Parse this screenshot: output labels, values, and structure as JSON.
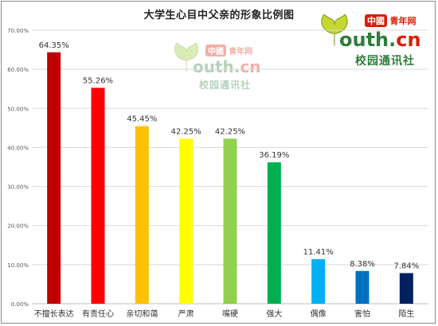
{
  "chart_data": {
    "type": "bar",
    "title": "大学生心目中父亲的形象比例图",
    "categories": [
      "不擅长表达",
      "有责任心",
      "亲切和蔼",
      "严肃",
      "嘴硬",
      "强大",
      "偶像",
      "害怕",
      "陌生"
    ],
    "values": [
      64.35,
      55.26,
      45.45,
      42.25,
      42.25,
      36.19,
      11.41,
      8.38,
      7.84
    ],
    "value_labels": [
      "64.35%",
      "55.26%",
      "45.45%",
      "42.25%",
      "42.25%",
      "36.19%",
      "11.41%",
      "8.38%",
      "7.84%"
    ],
    "colors": [
      "#c00000",
      "#ff0000",
      "#ffc000",
      "#ffff00",
      "#92d050",
      "#00b050",
      "#00b0f0",
      "#0070c0",
      "#002060"
    ],
    "ylim": [
      0,
      70
    ],
    "yticks": [
      0,
      10,
      20,
      30,
      40,
      50,
      60,
      70
    ],
    "ytick_labels": [
      "0.00%",
      "10.00%",
      "20.00%",
      "30.00%",
      "40.00%",
      "50.00%",
      "60.00%",
      "70.00%"
    ],
    "grid": true,
    "xlabel": "",
    "ylabel": ""
  },
  "logo": {
    "badge": "中國",
    "brand": "青年网",
    "main_o": "o",
    "main_text": "uth.",
    "main_cn": "cn",
    "sub": "校园通讯社",
    "leaf_icon": "ginkgo-leaf-icon"
  }
}
